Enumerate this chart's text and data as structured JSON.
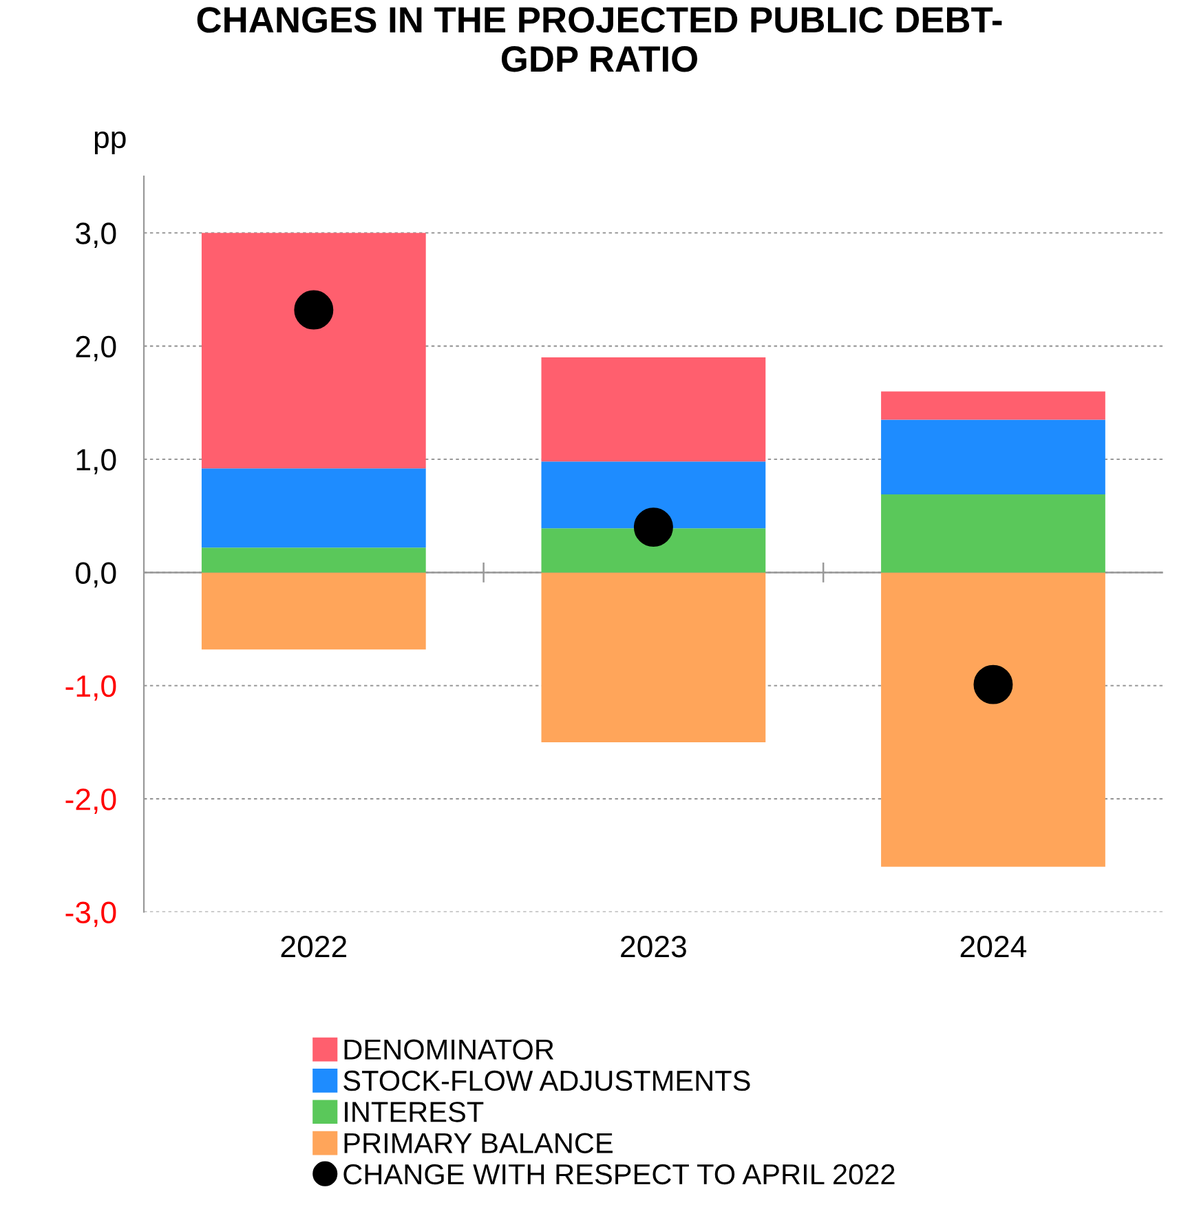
{
  "chart_data": {
    "type": "bar",
    "title": "CHANGES IN THE PROJECTED PUBLIC DEBT-\nGDP RATIO",
    "ylabel": "pp",
    "categories": [
      "2022",
      "2023",
      "2024"
    ],
    "stacked": true,
    "series": [
      {
        "name": "PRIMARY BALANCE",
        "color": "#ffa55a",
        "values": [
          -0.68,
          -1.5,
          -2.6
        ]
      },
      {
        "name": "INTEREST",
        "color": "#5ac85a",
        "values": [
          0.22,
          0.39,
          0.69
        ]
      },
      {
        "name": "STOCK-FLOW ADJUSTMENTS",
        "color": "#1e8cff",
        "values": [
          0.7,
          0.59,
          0.66
        ]
      },
      {
        "name": "DENOMINATOR",
        "color": "#ff5f6e",
        "values": [
          2.08,
          0.92,
          0.25
        ]
      },
      {
        "name": "CHANGE WITH RESPECT TO APRIL 2022",
        "type": "scatter",
        "color": "#000000",
        "values": [
          2.32,
          0.4,
          -0.99
        ]
      }
    ],
    "ylim": [
      -3.0,
      3.5
    ],
    "yticks": [
      {
        "value": -3.0,
        "label": "-3,0"
      },
      {
        "value": -2.0,
        "label": "-2,0"
      },
      {
        "value": -1.0,
        "label": "-1,0"
      },
      {
        "value": 0.0,
        "label": "0,0"
      },
      {
        "value": 1.0,
        "label": "1,0"
      },
      {
        "value": 2.0,
        "label": "2,0"
      },
      {
        "value": 3.0,
        "label": "3,0"
      }
    ],
    "grid": "y",
    "legend": "bottom",
    "marker": "circle"
  }
}
